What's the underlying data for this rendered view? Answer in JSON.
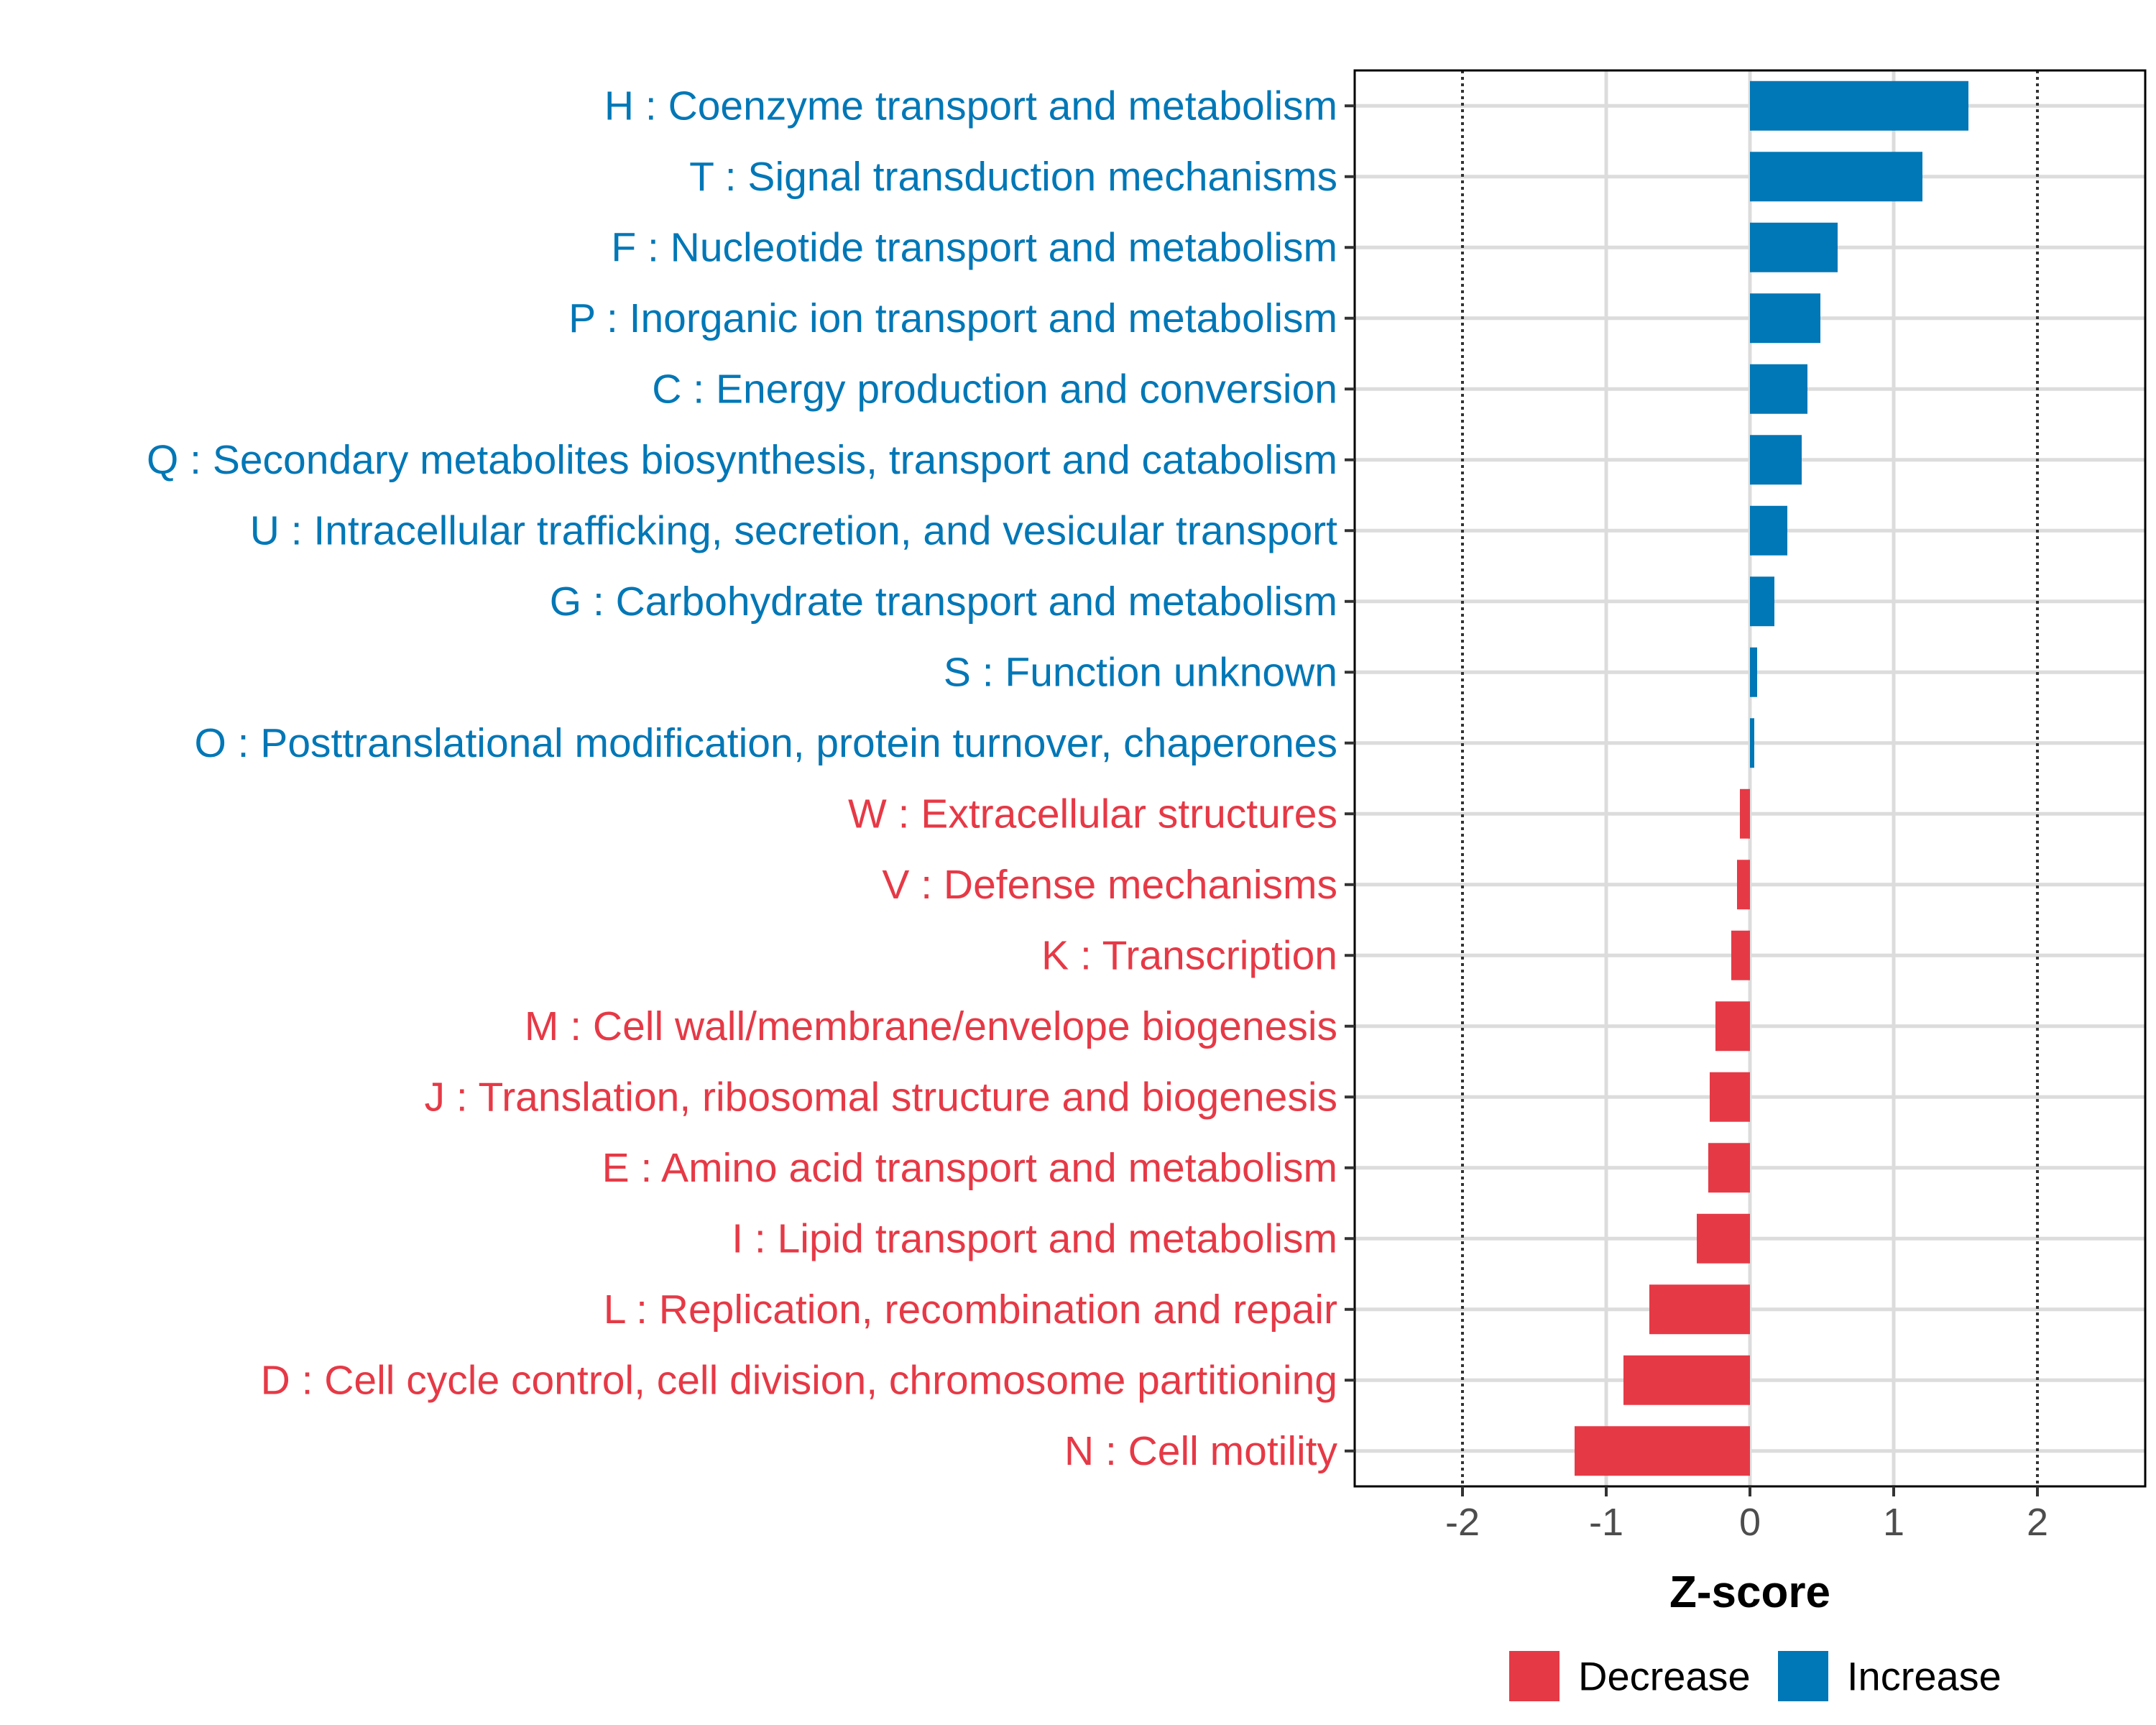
{
  "chart_data": {
    "type": "bar",
    "orientation": "horizontal",
    "categories": [
      "H : Coenzyme transport and metabolism",
      "T : Signal transduction mechanisms",
      "F : Nucleotide transport and metabolism",
      "P : Inorganic ion transport and metabolism",
      "C : Energy production and conversion",
      "Q : Secondary metabolites biosynthesis, transport and catabolism",
      "U : Intracellular trafficking, secretion, and vesicular transport",
      "G : Carbohydrate transport and metabolism",
      "S : Function unknown",
      "O : Posttranslational modification, protein turnover, chaperones",
      "W : Extracellular structures",
      "V : Defense mechanisms",
      "K : Transcription",
      "M : Cell wall/membrane/envelope biogenesis",
      "J : Translation, ribosomal structure and biogenesis",
      "E : Amino acid transport and metabolism",
      "I : Lipid transport and metabolism",
      "L : Replication, recombination and repair",
      "D : Cell cycle control, cell division, chromosome partitioning",
      "N : Cell motility"
    ],
    "values": [
      1.52,
      1.2,
      0.61,
      0.49,
      0.4,
      0.36,
      0.26,
      0.17,
      0.05,
      0.03,
      -0.07,
      -0.09,
      -0.13,
      -0.24,
      -0.28,
      -0.29,
      -0.37,
      -0.7,
      -0.88,
      -1.22
    ],
    "groups": [
      "Increase",
      "Increase",
      "Increase",
      "Increase",
      "Increase",
      "Increase",
      "Increase",
      "Increase",
      "Increase",
      "Increase",
      "Decrease",
      "Decrease",
      "Decrease",
      "Decrease",
      "Decrease",
      "Decrease",
      "Decrease",
      "Decrease",
      "Decrease",
      "Decrease"
    ],
    "xlabel": "Z-score",
    "ylabel": "",
    "xlim": [
      -2.75,
      2.75
    ],
    "xticks": [
      -2,
      -1,
      0,
      1,
      2
    ],
    "xtick_labels": [
      "-2",
      "-1",
      "0",
      "1",
      "2"
    ],
    "reference_lines": [
      -2,
      2
    ],
    "grid": true,
    "legend": {
      "position": "bottom",
      "entries": [
        {
          "label": "Decrease",
          "color": "#E63946"
        },
        {
          "label": "Increase",
          "color": "#0077B6"
        }
      ]
    },
    "colors": {
      "Decrease": "#E63946",
      "Increase": "#0077B6"
    }
  }
}
